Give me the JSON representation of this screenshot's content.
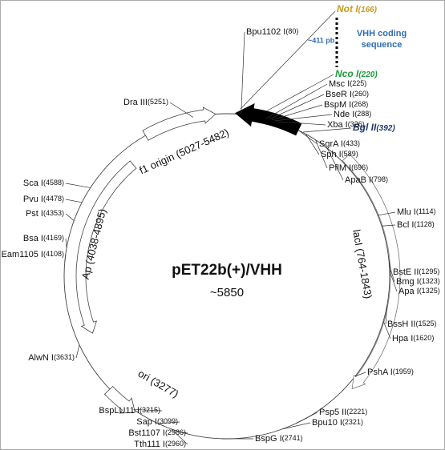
{
  "plasmid": {
    "name": "pET22b(+)/VHH",
    "size": "~5850"
  },
  "insert": {
    "not_i": {
      "name": "Not I",
      "position": "(166)"
    },
    "length": "~411 pb",
    "label_lines": [
      "VHH coding",
      "sequence"
    ],
    "nco_i": {
      "name": "Nco I",
      "position": "(220)"
    },
    "bgl_ii": {
      "name": "Bgl II",
      "position": "(392)"
    }
  },
  "sites": [
    {
      "name": "Bpu1102 I",
      "position": "(80)"
    },
    {
      "name": "Dra III",
      "position": "(5251)"
    },
    {
      "name": "Msc I",
      "position": "(225)"
    },
    {
      "name": "BseR I",
      "position": "(260)"
    },
    {
      "name": "BspM I",
      "position": "(268)"
    },
    {
      "name": "Nde I",
      "position": "(288)"
    },
    {
      "name": "Xba I",
      "position": "(326)"
    },
    {
      "name": "SgrA I",
      "position": "(433)"
    },
    {
      "name": "Sph I",
      "position": "(589)"
    },
    {
      "name": "PflM I",
      "position": "(696)"
    },
    {
      "name": "ApaB I",
      "position": "(798)"
    },
    {
      "name": "Mlu I",
      "position": "(1114)"
    },
    {
      "name": "Bcl I",
      "position": "(1128)"
    },
    {
      "name": "BstE II",
      "position": "(1295)"
    },
    {
      "name": "Bmg I",
      "position": "(1323)"
    },
    {
      "name": "Apa I",
      "position": "(1325)"
    },
    {
      "name": "BssH II",
      "position": "(1525)"
    },
    {
      "name": "Hpa I",
      "position": "(1620)"
    },
    {
      "name": "PshA I",
      "position": "(1959)"
    },
    {
      "name": "Psp5 II",
      "position": "(2221)"
    },
    {
      "name": "Bpu10 I",
      "position": "(2321)"
    },
    {
      "name": "BspG I",
      "position": "(2741)"
    },
    {
      "name": "Tth111 I",
      "position": "(2960)"
    },
    {
      "name": "Bst1107 I",
      "position": "(2986)"
    },
    {
      "name": "Sap I",
      "position": "(3099)"
    },
    {
      "name": "BspLU11 I",
      "position": "(3215)"
    },
    {
      "name": "AlwN I",
      "position": "(3631)"
    },
    {
      "name": "Eam1105 I",
      "position": "(4108)"
    },
    {
      "name": "Bsa I",
      "position": "(4169)"
    },
    {
      "name": "Pst I",
      "position": "(4353)"
    },
    {
      "name": "Pvu I",
      "position": "(4478)"
    },
    {
      "name": "Sca I",
      "position": "(4588)"
    }
  ],
  "features": [
    {
      "label": "f1 origin (5027-5482)"
    },
    {
      "label": "Ap (4038-4895)"
    },
    {
      "label": "lacI (764-1843)"
    },
    {
      "label": "ori (3277)"
    }
  ]
}
